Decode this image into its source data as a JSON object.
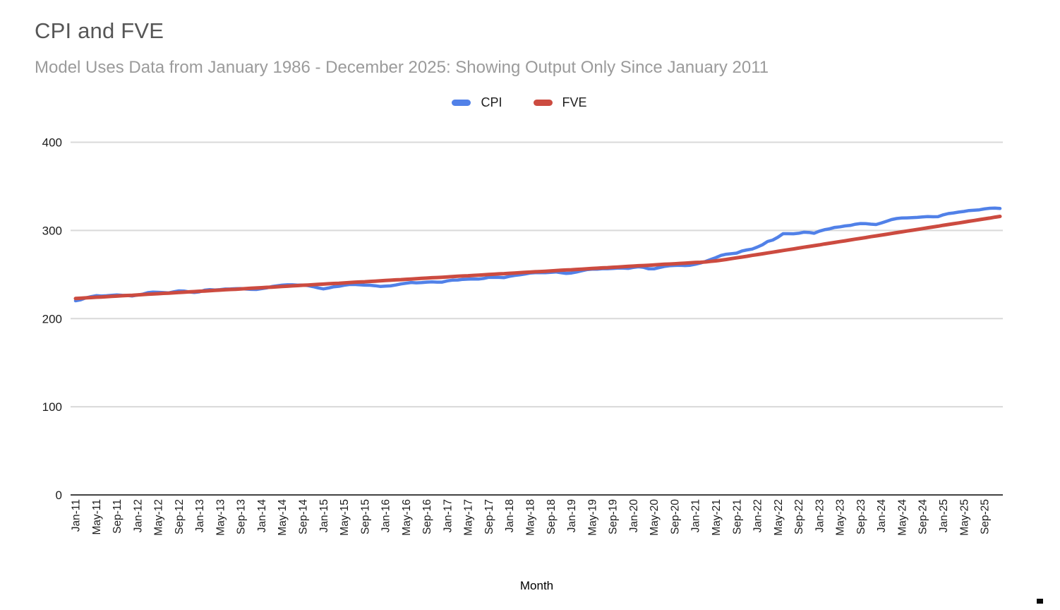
{
  "header": {
    "title": "CPI and FVE",
    "subtitle": "Model Uses Data from January 1986 - December 2025: Showing Output Only Since January 2011"
  },
  "colors": {
    "cpi_line": "#5181e8",
    "fve_line": "#cc4b40",
    "gridline": "#d9d9d9",
    "axis_line": "#424242",
    "title_text": "#565656",
    "subtitle_text": "#9b9b9b",
    "tick_text": "#1c1c1c"
  },
  "chart_data": {
    "type": "line",
    "title": "CPI and FVE",
    "subtitle": "Model Uses Data from January 1986 - December 2025: Showing Output Only Since January 2011",
    "xlabel": "Month",
    "ylabel": "",
    "ylim": [
      0,
      400
    ],
    "y_ticks": [
      0,
      100,
      200,
      300,
      400
    ],
    "grid": "horizontal",
    "legend_position": "top",
    "x_frequency": "monthly",
    "x_start": "Jan-11",
    "x_end": "Dec-25",
    "x_tick_every_n_months": 4,
    "x_tick_labels": [
      "Jan-11",
      "May-11",
      "Sep-11",
      "Jan-12",
      "May-12",
      "Sep-12",
      "Jan-13",
      "May-13",
      "Sep-13",
      "Jan-14",
      "May-14",
      "Sep-14",
      "Jan-15",
      "May-15",
      "Sep-15",
      "Jan-16",
      "May-16",
      "Sep-16",
      "Jan-17",
      "May-17",
      "Sep-17",
      "Jan-18",
      "May-18",
      "Sep-18",
      "Jan-19",
      "May-19",
      "Sep-19",
      "Jan-20",
      "May-20",
      "Sep-20",
      "Jan-21",
      "May-21",
      "Sep-21",
      "Jan-22",
      "May-22",
      "Sep-22",
      "Jan-23",
      "May-23",
      "Sep-23",
      "Jan-24",
      "May-24",
      "Sep-24",
      "Jan-25",
      "May-25",
      "Sep-25"
    ],
    "series": [
      {
        "name": "CPI",
        "color": "#5181e8",
        "values": [
          220.2,
          221.3,
          223.5,
          224.9,
          226.0,
          225.7,
          225.9,
          226.5,
          226.9,
          226.4,
          226.2,
          225.7,
          226.7,
          227.7,
          229.4,
          230.1,
          229.8,
          229.5,
          229.1,
          230.4,
          231.4,
          231.3,
          230.2,
          229.6,
          230.3,
          232.2,
          232.8,
          232.5,
          232.9,
          233.5,
          233.6,
          233.9,
          234.1,
          233.5,
          233.1,
          233.0,
          233.9,
          234.8,
          236.3,
          237.1,
          237.9,
          238.3,
          238.3,
          237.9,
          238.0,
          237.4,
          236.2,
          234.8,
          233.7,
          234.7,
          236.1,
          236.6,
          237.8,
          238.6,
          238.7,
          238.3,
          237.9,
          237.8,
          237.3,
          236.5,
          236.9,
          237.1,
          238.1,
          239.3,
          240.2,
          241.0,
          240.6,
          240.8,
          241.4,
          241.7,
          241.4,
          241.4,
          242.8,
          243.6,
          243.8,
          244.5,
          244.7,
          245.0,
          244.8,
          245.5,
          246.8,
          246.7,
          246.7,
          246.5,
          247.9,
          249.0,
          249.6,
          250.5,
          251.6,
          252.0,
          252.0,
          252.1,
          252.4,
          252.9,
          252.0,
          251.2,
          251.7,
          252.8,
          254.2,
          255.5,
          256.1,
          256.1,
          256.6,
          256.6,
          256.8,
          257.3,
          257.2,
          257.0,
          258.0,
          258.7,
          258.1,
          256.4,
          256.4,
          257.8,
          259.1,
          259.9,
          260.3,
          260.4,
          260.2,
          260.5,
          261.6,
          263.0,
          264.9,
          267.1,
          269.2,
          271.7,
          273.0,
          273.6,
          274.3,
          276.6,
          277.9,
          278.8,
          281.1,
          283.7,
          287.5,
          289.1,
          292.3,
          296.3,
          296.3,
          296.2,
          296.8,
          298.0,
          297.7,
          296.8,
          299.2,
          300.8,
          301.8,
          303.4,
          304.1,
          305.1,
          305.7,
          307.0,
          307.8,
          307.7,
          307.1,
          306.7,
          308.4,
          310.3,
          312.3,
          313.5,
          314.1,
          314.2,
          314.5,
          314.8,
          315.3,
          315.7,
          315.5,
          315.6,
          317.7,
          319.1,
          319.8,
          320.8,
          321.5,
          322.6,
          323.0,
          323.4,
          324.4,
          325.1,
          325.4,
          324.9
        ]
      },
      {
        "name": "FVE",
        "color": "#cc4b40",
        "values": [
          222.8,
          223.1,
          223.5,
          223.8,
          224.2,
          224.5,
          224.8,
          225.2,
          225.5,
          225.9,
          226.2,
          226.5,
          226.9,
          227.2,
          227.6,
          227.9,
          228.2,
          228.6,
          228.9,
          229.3,
          229.6,
          229.9,
          230.3,
          230.6,
          231.0,
          231.3,
          231.6,
          232.0,
          232.3,
          232.7,
          233.0,
          233.3,
          233.7,
          234.0,
          234.4,
          234.7,
          235.0,
          235.4,
          235.7,
          236.1,
          236.4,
          236.7,
          237.1,
          237.4,
          237.8,
          238.1,
          238.4,
          238.8,
          239.1,
          239.5,
          239.8,
          240.1,
          240.5,
          240.8,
          241.2,
          241.5,
          241.8,
          242.2,
          242.5,
          242.9,
          243.2,
          243.5,
          243.9,
          244.2,
          244.6,
          244.9,
          245.2,
          245.6,
          245.9,
          246.3,
          246.6,
          246.9,
          247.3,
          247.6,
          248.0,
          248.3,
          248.6,
          249.0,
          249.3,
          249.7,
          250.0,
          250.3,
          250.7,
          251.0,
          251.4,
          251.7,
          252.0,
          252.4,
          252.7,
          253.1,
          253.4,
          253.7,
          254.1,
          254.4,
          254.8,
          255.1,
          255.4,
          255.8,
          256.1,
          256.5,
          256.8,
          257.1,
          257.5,
          257.8,
          258.2,
          258.5,
          258.8,
          259.2,
          259.5,
          259.9,
          260.2,
          260.5,
          260.9,
          261.2,
          261.6,
          261.9,
          262.2,
          262.6,
          262.9,
          263.3,
          263.6,
          263.9,
          264.3,
          264.9,
          265.5,
          266.3,
          267.1,
          268.0,
          268.9,
          269.8,
          270.7,
          271.7,
          272.6,
          273.5,
          274.4,
          275.3,
          276.3,
          277.2,
          278.1,
          279.0,
          280.0,
          280.9,
          281.8,
          282.7,
          283.6,
          284.6,
          285.5,
          286.4,
          287.3,
          288.2,
          289.2,
          290.1,
          291.0,
          291.9,
          292.9,
          293.8,
          294.7,
          295.6,
          296.5,
          297.5,
          298.4,
          299.3,
          300.2,
          301.1,
          302.1,
          303.0,
          303.9,
          304.8,
          305.8,
          306.7,
          307.6,
          308.5,
          309.4,
          310.4,
          311.3,
          312.2,
          313.1,
          314.0,
          315.0,
          315.9
        ]
      }
    ]
  }
}
